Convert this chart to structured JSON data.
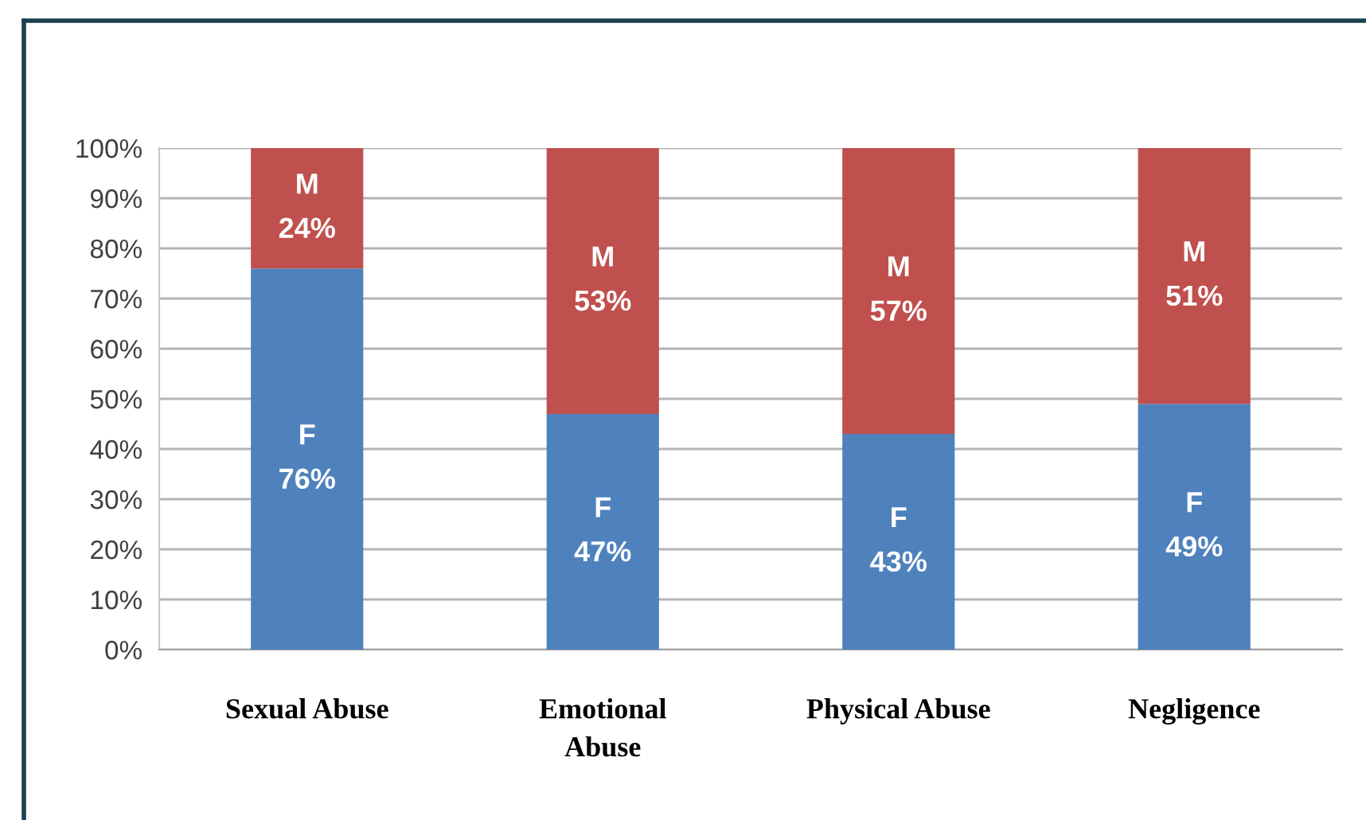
{
  "chart_data": {
    "type": "bar",
    "stacked": true,
    "categories": [
      "Sexual Abuse",
      "Emotional\nAbuse",
      "Physical Abuse",
      "Negligence"
    ],
    "series": [
      {
        "name": "F",
        "color": "#4f81bd",
        "values": [
          76,
          47,
          43,
          49
        ],
        "value_labels": [
          "76%",
          "47%",
          "43%",
          "49%"
        ]
      },
      {
        "name": "M",
        "color": "#c0504d",
        "values": [
          24,
          53,
          57,
          51
        ],
        "value_labels": [
          "24%",
          "53%",
          "57%",
          "51%"
        ]
      }
    ],
    "ylim": [
      0,
      100
    ],
    "yticks": [
      {
        "value": 0,
        "label": "0%"
      },
      {
        "value": 10,
        "label": "10%"
      },
      {
        "value": 20,
        "label": "20%"
      },
      {
        "value": 30,
        "label": "30%"
      },
      {
        "value": 40,
        "label": "40%"
      },
      {
        "value": 50,
        "label": "50%"
      },
      {
        "value": 60,
        "label": "60%"
      },
      {
        "value": 70,
        "label": "70%"
      },
      {
        "value": 80,
        "label": "80%"
      },
      {
        "value": 90,
        "label": "90%"
      },
      {
        "value": 100,
        "label": "100%"
      }
    ],
    "grid": "y",
    "legend": false
  }
}
